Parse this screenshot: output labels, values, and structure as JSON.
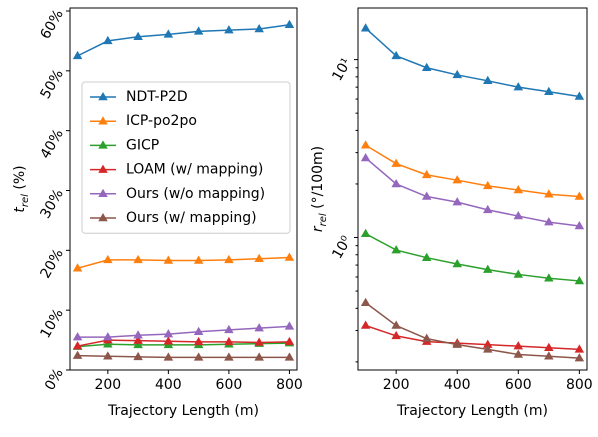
{
  "chart_data": [
    {
      "type": "line",
      "xlabel": "Trajectory Length (m)",
      "ylabel": "t_rel (%)",
      "ylabel_main": "t",
      "ylabel_sub": "rel",
      "ylabel_rest": " (%)",
      "x": [
        100,
        200,
        300,
        400,
        500,
        600,
        700,
        800
      ],
      "xticks": [
        200,
        400,
        600,
        800
      ],
      "xtick_labels": [
        "200",
        "400",
        "600",
        "800"
      ],
      "xlim": [
        75,
        825
      ],
      "ylim": [
        0,
        60.5
      ],
      "yticks": [
        0,
        10,
        20,
        30,
        40,
        50,
        60
      ],
      "ytick_labels": [
        "0%",
        "10%",
        "20%",
        "30%",
        "40%",
        "50%",
        "60%"
      ],
      "legend_position": "center-left",
      "series": [
        {
          "name": "NDT-P2D",
          "color": "#1f77b4",
          "values": [
            52.5,
            55.0,
            55.7,
            56.1,
            56.6,
            56.8,
            57.0,
            57.7
          ]
        },
        {
          "name": "ICP-po2po",
          "color": "#ff7f0e",
          "values": [
            17.0,
            18.4,
            18.4,
            18.3,
            18.3,
            18.4,
            18.6,
            18.8
          ]
        },
        {
          "name": "GICP",
          "color": "#2ca02c",
          "values": [
            3.9,
            4.3,
            4.2,
            4.2,
            4.2,
            4.3,
            4.4,
            4.5
          ]
        },
        {
          "name": "LOAM (w/ mapping)",
          "color": "#d62728",
          "values": [
            4.0,
            5.0,
            4.9,
            4.8,
            4.7,
            4.7,
            4.6,
            4.7
          ]
        },
        {
          "name": "Ours (w/o mapping)",
          "color": "#9467bd",
          "values": [
            5.5,
            5.5,
            5.8,
            6.0,
            6.4,
            6.7,
            7.0,
            7.3
          ]
        },
        {
          "name": "Ours (w/ mapping)",
          "color": "#8c564b",
          "values": [
            2.4,
            2.3,
            2.2,
            2.1,
            2.1,
            2.1,
            2.1,
            2.1
          ]
        }
      ]
    },
    {
      "type": "line",
      "xlabel": "Trajectory Length (m)",
      "ylabel": "r_rel (°/100m)",
      "ylabel_main": "r",
      "ylabel_sub": "rel",
      "ylabel_rest": " (°/100m)",
      "y_scale": "log",
      "x": [
        100,
        200,
        300,
        400,
        500,
        600,
        700,
        800
      ],
      "xticks": [
        200,
        400,
        600,
        800
      ],
      "xtick_labels": [
        "200",
        "400",
        "600",
        "800"
      ],
      "xlim": [
        75,
        825
      ],
      "ylim": [
        0.18,
        19.5
      ],
      "yticks": [
        1,
        10
      ],
      "ytick_labels": [
        "10⁰",
        "10¹"
      ],
      "series": [
        {
          "name": "NDT-P2D",
          "color": "#1f77b4",
          "values": [
            15.0,
            10.5,
            9.0,
            8.2,
            7.6,
            7.0,
            6.6,
            6.2
          ]
        },
        {
          "name": "ICP-po2po",
          "color": "#ff7f0e",
          "values": [
            3.3,
            2.6,
            2.25,
            2.1,
            1.95,
            1.85,
            1.75,
            1.7
          ]
        },
        {
          "name": "GICP",
          "color": "#2ca02c",
          "values": [
            1.05,
            0.85,
            0.77,
            0.71,
            0.66,
            0.62,
            0.59,
            0.57
          ]
        },
        {
          "name": "LOAM (w/ mapping)",
          "color": "#d62728",
          "values": [
            0.32,
            0.28,
            0.26,
            0.255,
            0.25,
            0.245,
            0.24,
            0.235
          ]
        },
        {
          "name": "Ours (w/o mapping)",
          "color": "#9467bd",
          "values": [
            2.8,
            2.0,
            1.7,
            1.58,
            1.43,
            1.32,
            1.22,
            1.16
          ]
        },
        {
          "name": "Ours (w/ mapping)",
          "color": "#8c564b",
          "values": [
            0.43,
            0.32,
            0.27,
            0.25,
            0.235,
            0.22,
            0.215,
            0.21
          ]
        }
      ]
    }
  ]
}
